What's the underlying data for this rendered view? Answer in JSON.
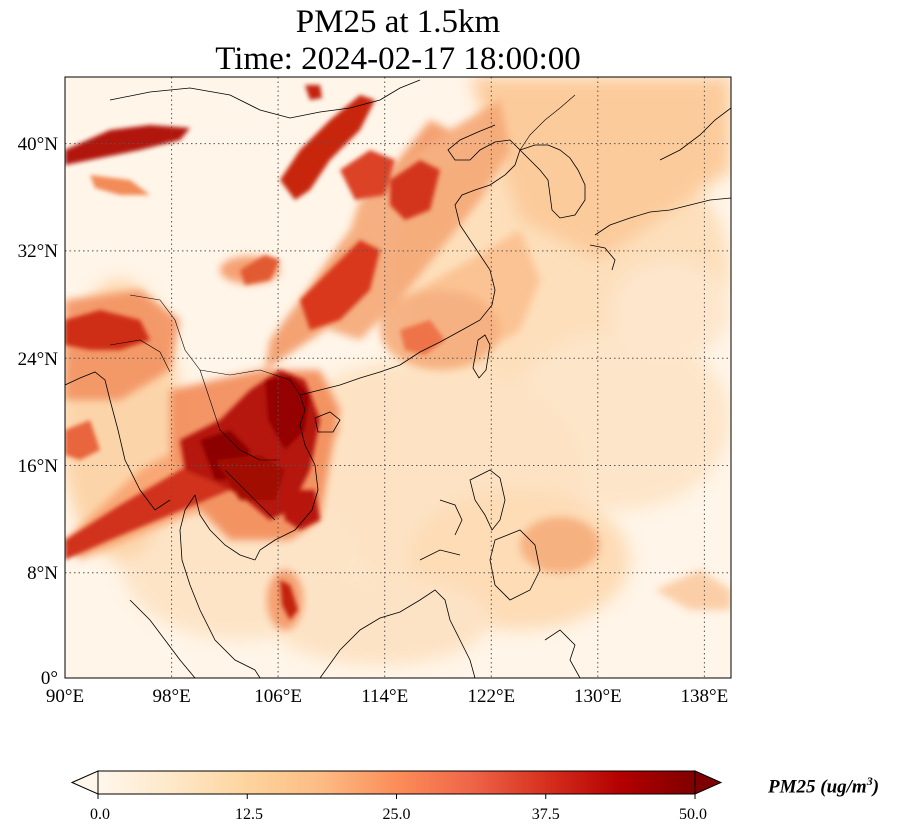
{
  "title": {
    "line1": "PM25 at 1.5km",
    "line2": "Time: 2024-02-17 18:00:00"
  },
  "map": {
    "lon_range": [
      90,
      140
    ],
    "lat_range": [
      0,
      44
    ],
    "lon_ticks": [
      "90°E",
      "98°E",
      "106°E",
      "114°E",
      "122°E",
      "130°E",
      "138°E"
    ],
    "lat_ticks": [
      "0°",
      "8°N",
      "16°N",
      "24°N",
      "32°N",
      "40°N"
    ],
    "grid_lines": "dotted",
    "colormap": "OrRd"
  },
  "colorbar": {
    "ticks": [
      "0.0",
      "12.5",
      "25.0",
      "37.5",
      "50.0"
    ],
    "range": [
      0,
      50
    ],
    "extend": "both",
    "label_main": "PM25 (ug/m",
    "label_sup": "3",
    "label_end": ")"
  }
}
